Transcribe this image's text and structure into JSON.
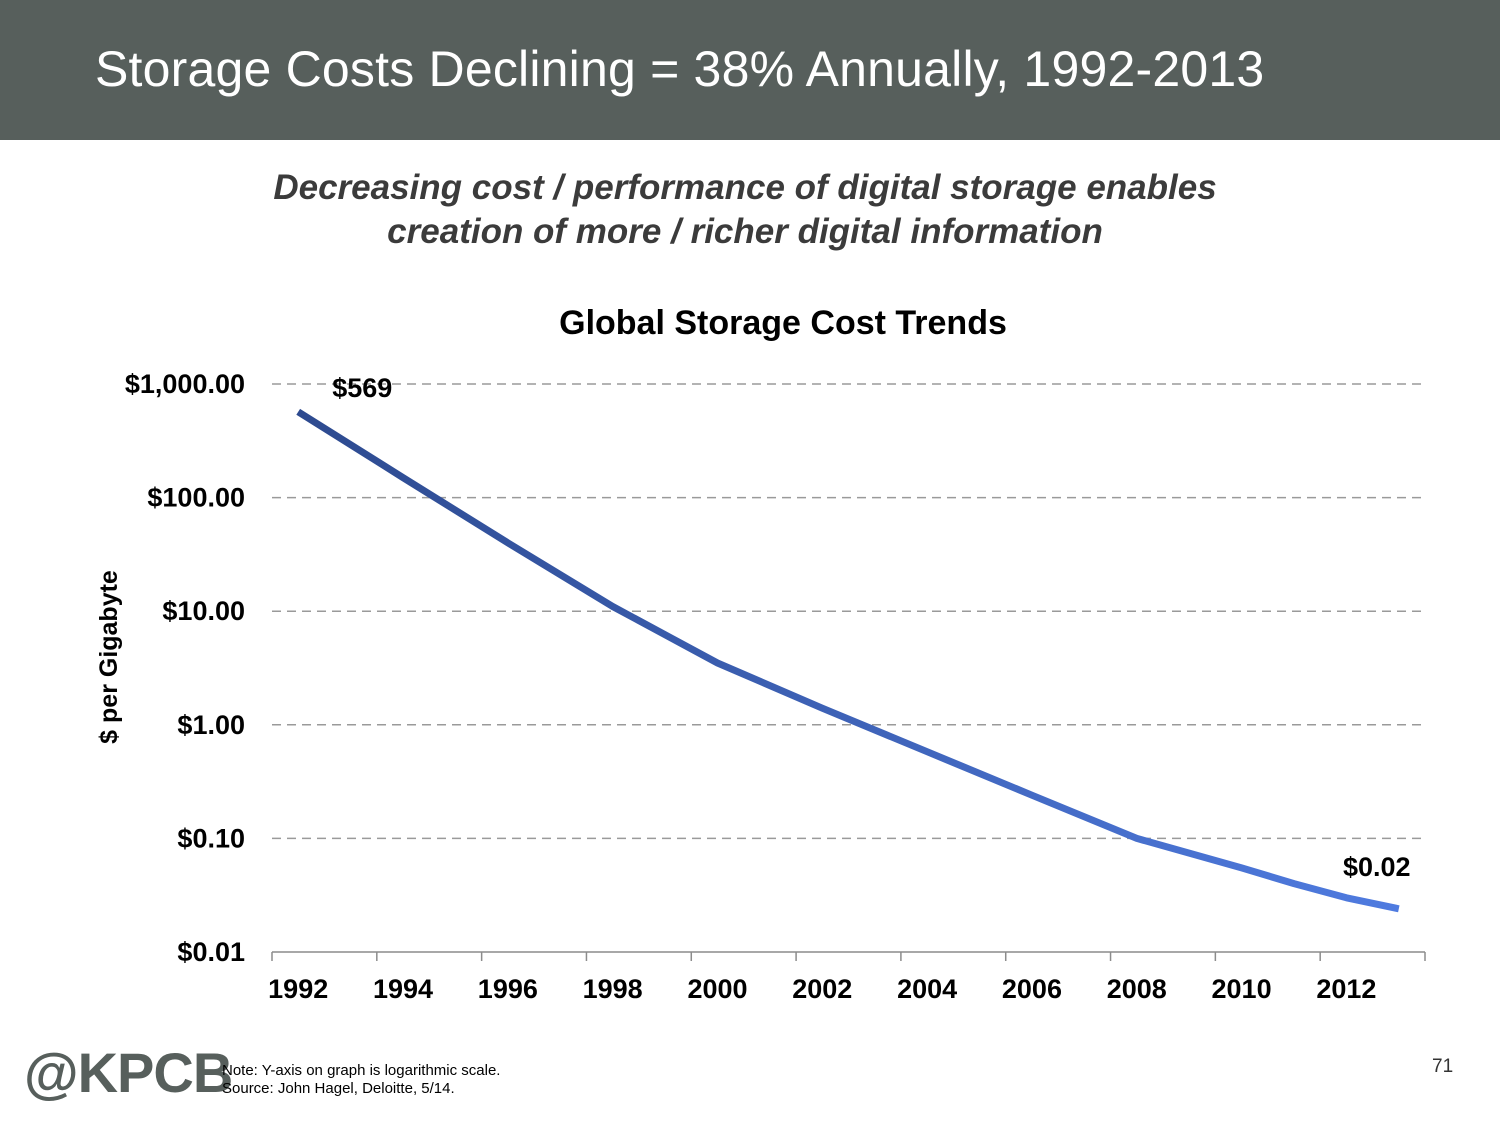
{
  "slide": {
    "title": "Storage Costs Declining = 38% Annually, 1992-2013",
    "subtitle_line1": "Decreasing cost / performance of digital storage enables",
    "subtitle_line2": "creation of more / richer digital information",
    "page_number": "71"
  },
  "footer": {
    "logo": "@KPCB",
    "note": "Note: Y-axis on graph is logarithmic scale.",
    "source": "Source: John Hagel, Deloitte, 5/14."
  },
  "colors": {
    "header_bg": "#575f5c",
    "line_start": "#2d4a8f",
    "line_end": "#4f7be0",
    "grid": "#9a9a9a"
  },
  "chart_data": {
    "type": "line",
    "title": "Global Storage Cost Trends",
    "xlabel": "",
    "ylabel": "$ per Gigabyte",
    "y_scale": "log",
    "ylim": [
      0.01,
      1000
    ],
    "xlim": [
      1991.5,
      2013.5
    ],
    "y_ticks": [
      {
        "value": 1000,
        "label": "$1,000.00"
      },
      {
        "value": 100,
        "label": "$100.00"
      },
      {
        "value": 10,
        "label": "$10.00"
      },
      {
        "value": 1,
        "label": "$1.00"
      },
      {
        "value": 0.1,
        "label": "$0.10"
      },
      {
        "value": 0.01,
        "label": "$0.01"
      }
    ],
    "x_ticks": [
      "1992",
      "1994",
      "1996",
      "1998",
      "2000",
      "2002",
      "2004",
      "2006",
      "2008",
      "2010",
      "2012"
    ],
    "grid": "horizontal dashed",
    "series": [
      {
        "x": [
          1992,
          1994,
          1996,
          1998,
          2000,
          2002,
          2004,
          2006,
          2008,
          2010,
          2011,
          2012,
          2013
        ],
        "values": [
          569,
          150,
          40,
          11,
          3.5,
          1.4,
          0.58,
          0.24,
          0.1,
          0.055,
          0.04,
          0.03,
          0.024
        ]
      }
    ],
    "annotations": [
      {
        "x": 1992,
        "value": 569,
        "text": "$569",
        "position": "above-right"
      },
      {
        "x": 2013,
        "value": 0.024,
        "text": "$0.02",
        "position": "above"
      }
    ]
  }
}
